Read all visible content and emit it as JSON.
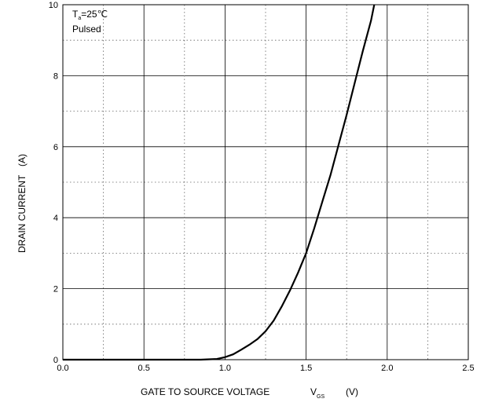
{
  "chart_data": {
    "type": "line",
    "xlabel_main": "GATE TO SOURCE VOLTAGE",
    "xlabel_symbol": "V",
    "xlabel_symbol_sub": "GS",
    "xlabel_unit": "(V)",
    "ylabel_main": "DRAIN CURRENT",
    "ylabel_unit": "(A)",
    "xlim": [
      0,
      2.5
    ],
    "ylim": [
      0,
      10
    ],
    "x_major_ticks": [
      0,
      0.5,
      1.0,
      1.5,
      2.0,
      2.5
    ],
    "x_tick_labels": [
      "0.0",
      "0.5",
      "1.0",
      "1.5",
      "2.0",
      "2.5"
    ],
    "y_major_ticks": [
      0,
      2,
      4,
      6,
      8,
      10
    ],
    "y_tick_labels": [
      "0",
      "2",
      "4",
      "6",
      "8",
      "10"
    ],
    "x_minor_grid": [
      0.25,
      0.75,
      1.25,
      1.75,
      2.25
    ],
    "y_minor_grid": [
      1,
      3,
      5,
      7,
      9
    ],
    "grid": true,
    "annotation": {
      "line1_prefix": "T",
      "line1_sub": "a",
      "line1_suffix": "=25℃",
      "line2": "Pulsed"
    },
    "series": [
      {
        "x": [
          0.0,
          0.5,
          0.85,
          0.95,
          1.0,
          1.05,
          1.1,
          1.15,
          1.2,
          1.25,
          1.3,
          1.35,
          1.4,
          1.45,
          1.5,
          1.55,
          1.6,
          1.65,
          1.7,
          1.75,
          1.8,
          1.85,
          1.9,
          1.92
        ],
        "y": [
          0.0,
          0.0,
          0.0,
          0.02,
          0.07,
          0.15,
          0.28,
          0.42,
          0.58,
          0.8,
          1.1,
          1.5,
          1.95,
          2.45,
          3.0,
          3.7,
          4.45,
          5.2,
          6.05,
          6.9,
          7.8,
          8.7,
          9.55,
          10.0
        ]
      }
    ]
  }
}
